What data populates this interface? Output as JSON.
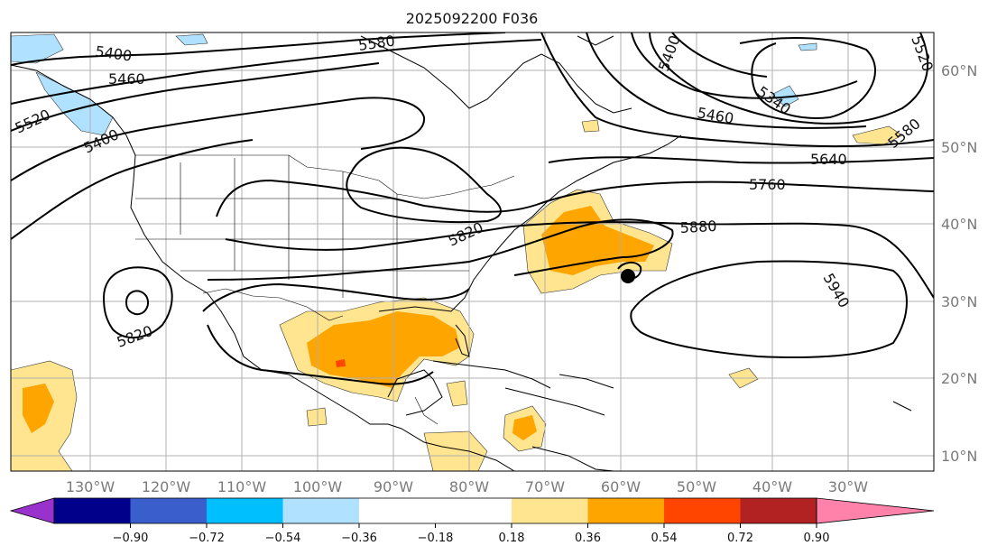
{
  "title": "2025092200 F036",
  "lon_labels": [
    "130°W",
    "120°W",
    "110°W",
    "100°W",
    "90°W",
    "80°W",
    "70°W",
    "60°W",
    "50°W",
    "40°W",
    "30°W"
  ],
  "lat_labels": [
    "60°N",
    "50°N",
    "40°N",
    "30°N",
    "20°N",
    "10°N"
  ],
  "contour_labels": {
    "c5400a": "5400",
    "c5460a": "5460",
    "c5520a": "5520",
    "c5400b": "5400",
    "c5580a": "5580",
    "c5400c": "5400",
    "c5520b": "5520",
    "c5340": "5340",
    "c5460b": "5460",
    "c5580b": "5580",
    "c5640": "5640",
    "c5760": "5760",
    "c5880": "5880",
    "c5820a": "5820",
    "c5820b": "5820",
    "c5940": "5940"
  },
  "colorbar": {
    "ticks": [
      "−0.90",
      "−0.72",
      "−0.54",
      "−0.36",
      "−0.18",
      "0.18",
      "0.36",
      "0.54",
      "0.72",
      "0.90"
    ],
    "colors": [
      "#9932cc",
      "#00008b",
      "#3a5fcd",
      "#00bfff",
      "#b0e2ff",
      "#ffffff",
      "#ffe58f",
      "#ffa500",
      "#ff4500",
      "#b22222",
      "#ff82ab"
    ]
  }
}
